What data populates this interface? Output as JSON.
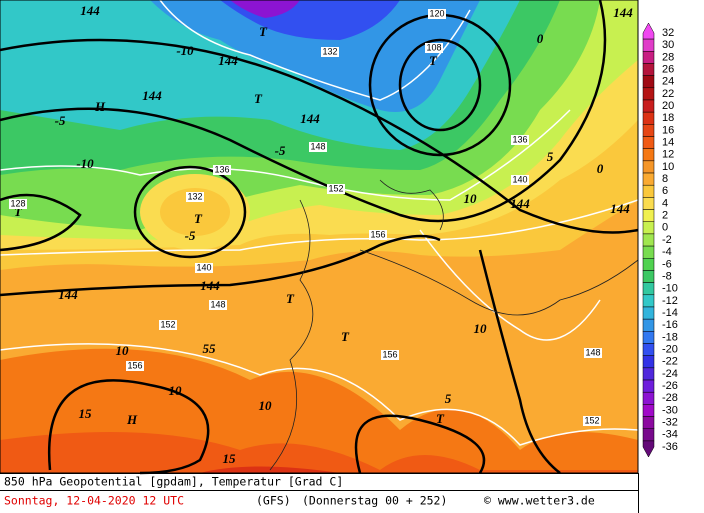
{
  "legend": {
    "labels": [
      32,
      30,
      28,
      26,
      24,
      22,
      20,
      18,
      16,
      14,
      12,
      10,
      8,
      6,
      4,
      2,
      0,
      -2,
      -4,
      -6,
      -8,
      -10,
      -12,
      -14,
      -16,
      -18,
      -20,
      -22,
      -24,
      -26,
      -28,
      -30,
      -32,
      -34,
      -36
    ],
    "colors": [
      "#f048f0",
      "#e03cc8",
      "#c81e82",
      "#b4143c",
      "#a00a14",
      "#b41414",
      "#c81e1e",
      "#dc3214",
      "#e64614",
      "#f05a14",
      "#f57814",
      "#f59628",
      "#faaa32",
      "#fac83c",
      "#fadc50",
      "#f0f050",
      "#c8f050",
      "#a0e650",
      "#78dc50",
      "#50d250",
      "#3cc864",
      "#32c8a0",
      "#32c8c8",
      "#32b4dc",
      "#3296e6",
      "#3278f0",
      "#3250f0",
      "#3232e6",
      "#5028dc",
      "#6e1edc",
      "#8c14d2",
      "#a00ac8",
      "#8c0aa0",
      "#780a8c",
      "#640a78"
    ]
  },
  "map_labels": [
    "144",
    "144",
    "144",
    "144",
    "144",
    "144",
    "144",
    "144",
    "144",
    "-10",
    "-10",
    "-5",
    "-5",
    "-5",
    "0",
    "H",
    "H",
    "T",
    "T",
    "T",
    "T",
    "T",
    "T",
    "T",
    "T",
    "132",
    "136",
    "128",
    "140",
    "148",
    "152",
    "156",
    "152",
    "156",
    "136",
    "140",
    "120",
    "108",
    "132",
    "148",
    "156",
    "152",
    "148",
    "10",
    "10",
    "15",
    "55",
    "10",
    "15",
    "0",
    "5",
    "10",
    "10",
    "5"
  ],
  "footer": {
    "line1": "850 hPa Geopotential [gpdam], Temperatur [Grad C]",
    "date": "Sonntag, 12-04-2020  12 UTC",
    "model": "(GFS)",
    "run": "(Donnerstag 00 + 252)",
    "copyright": "© www.wetter3.de"
  }
}
